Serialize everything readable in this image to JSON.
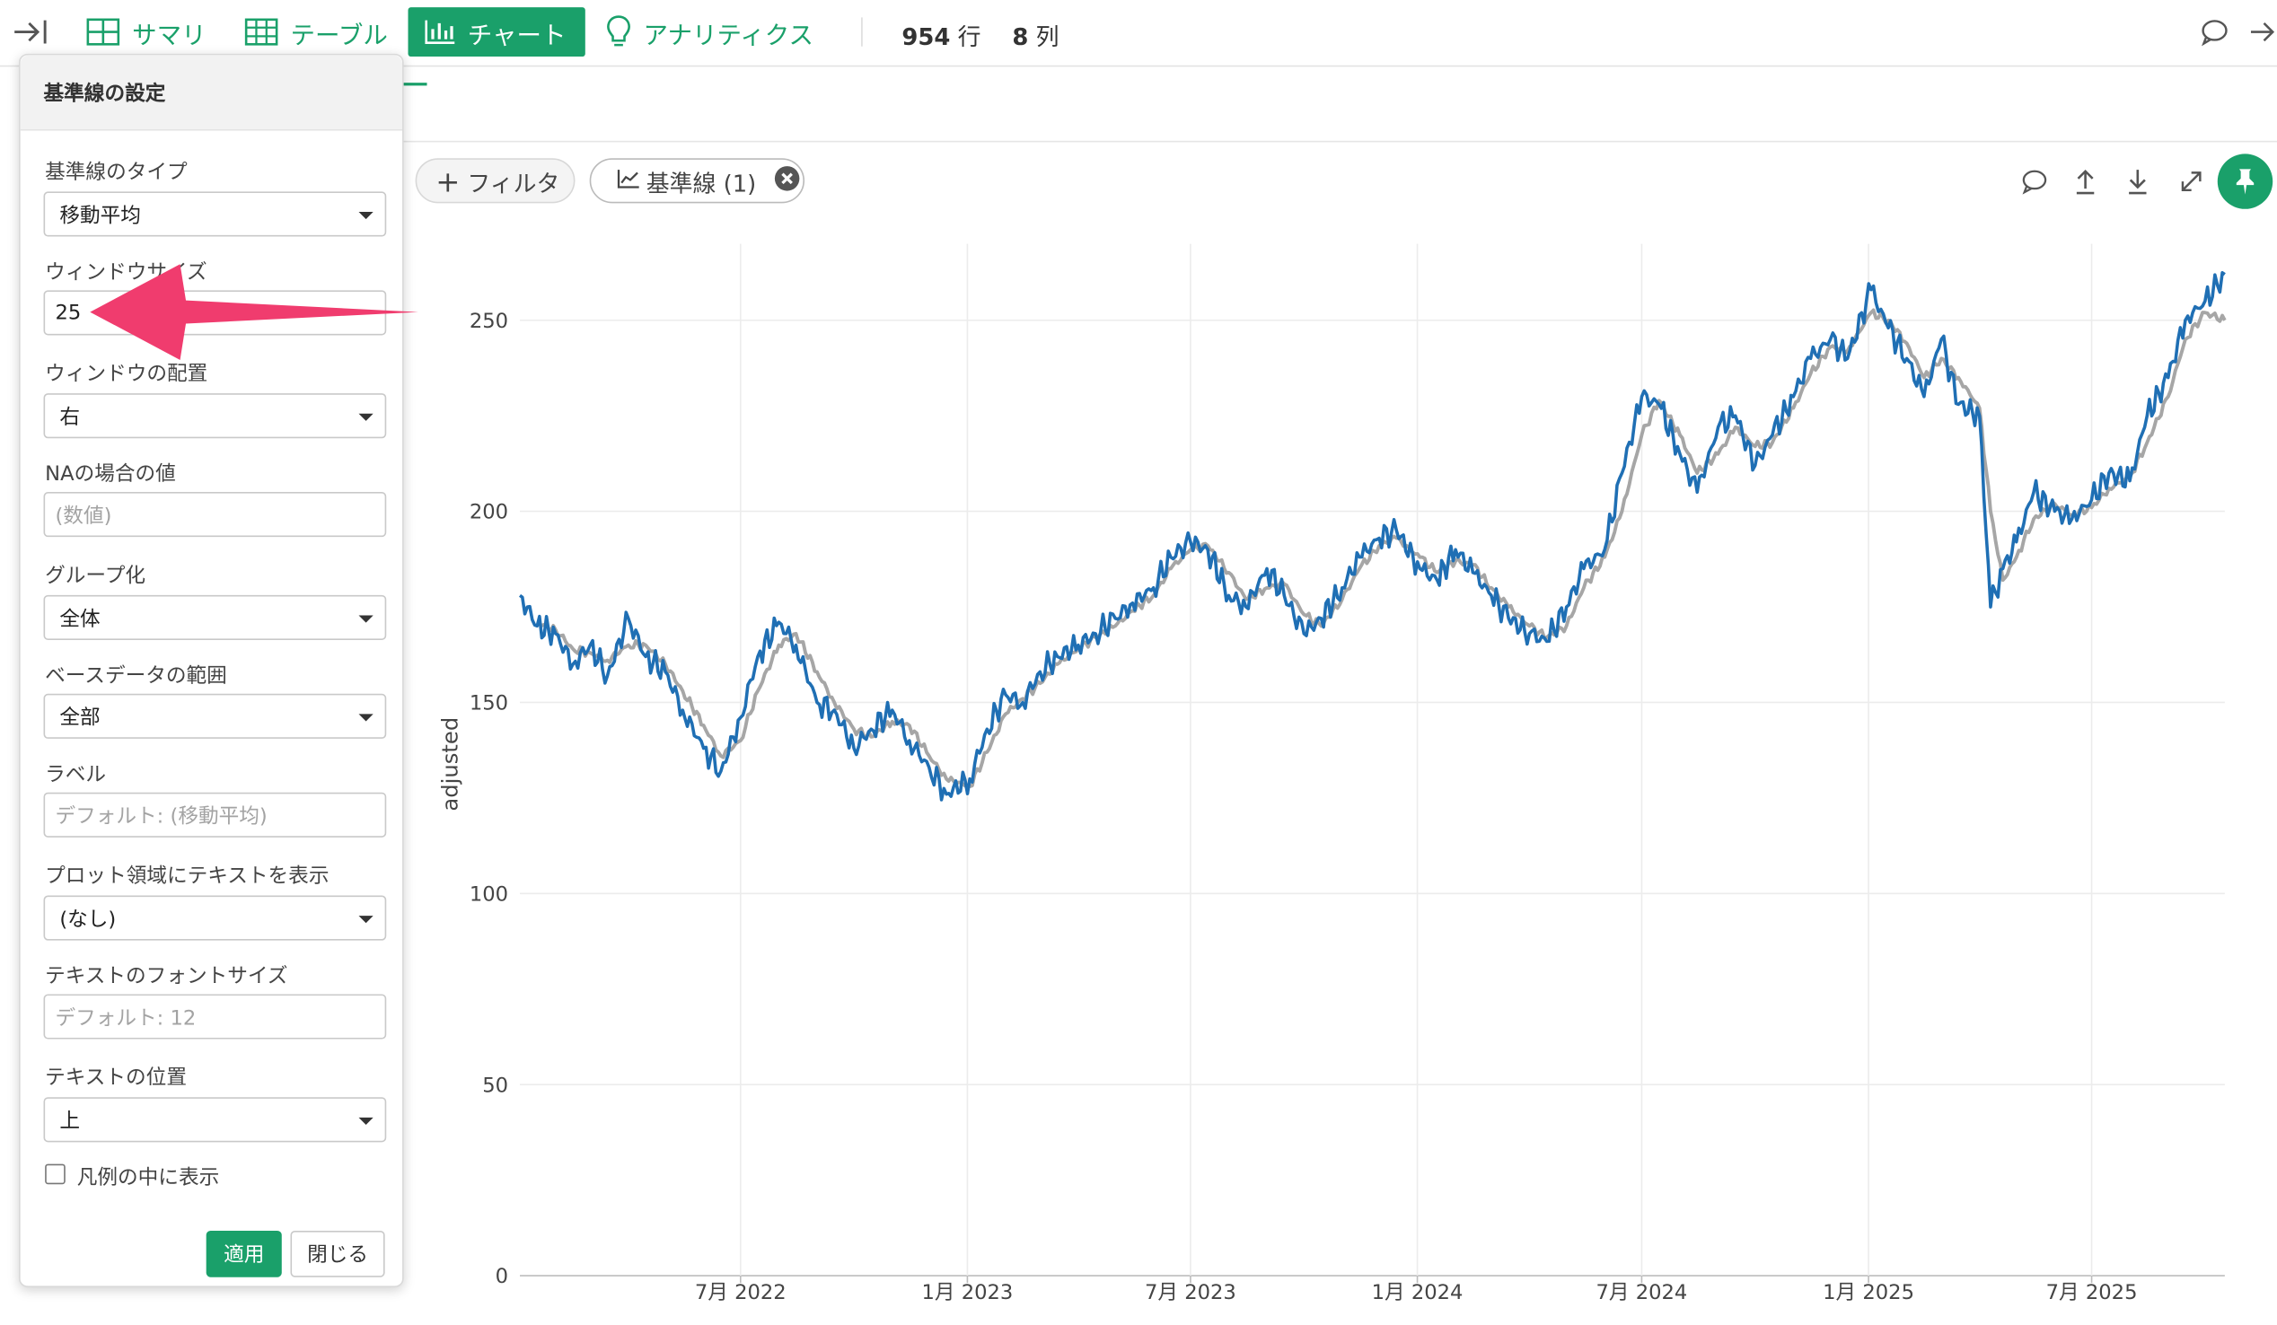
{
  "nav": {
    "collapse_icon": "collapse-right-icon",
    "tabs": [
      {
        "label": "サマリ",
        "icon": "summary-grid-icon"
      },
      {
        "label": "テーブル",
        "icon": "table-grid-icon"
      },
      {
        "label": "チャート",
        "icon": "bar-chart-icon"
      },
      {
        "label": "アナリティクス",
        "icon": "lightbulb-icon"
      }
    ],
    "active_tab": "チャート",
    "row_count": "954",
    "row_unit": "行",
    "col_count": "8",
    "col_unit": "列",
    "comment_icon": "comment-icon",
    "expand_icon": "arrow-right-icon"
  },
  "filters": {
    "add_filter_label": "フィルタ",
    "reference_pill_label": "基準線 (1)"
  },
  "chart_toolbar": {
    "icons": [
      "comment-icon",
      "upload-icon",
      "download-icon",
      "fullscreen-icon",
      "pin-icon"
    ]
  },
  "panel": {
    "title": "基準線の設定",
    "fields": {
      "type": {
        "label": "基準線のタイプ",
        "value": "移動平均"
      },
      "window_size": {
        "label": "ウィンドウサイズ",
        "value": "25"
      },
      "window_align": {
        "label": "ウィンドウの配置",
        "value": "右"
      },
      "na_value": {
        "label": "NAの場合の値",
        "placeholder": "(数値)"
      },
      "grouping": {
        "label": "グループ化",
        "value": "全体"
      },
      "base_range": {
        "label": "ベースデータの範囲",
        "value": "全部"
      },
      "label": {
        "label": "ラベル",
        "placeholder": "デフォルト: (移動平均)"
      },
      "plot_text": {
        "label": "プロット領域にテキストを表示",
        "value": "(なし)"
      },
      "font_size": {
        "label": "テキストのフォントサイズ",
        "placeholder": "デフォルト: 12"
      },
      "text_pos": {
        "label": "テキストの位置",
        "value": "上"
      }
    },
    "legend_checkbox_label": "凡例の中に表示",
    "legend_checked": false,
    "apply_label": "適用",
    "close_label": "閉じる"
  },
  "colors": {
    "brand": "#1aa06a",
    "series": "#1f6fb4",
    "reference": "#a6a6a6",
    "annotation_arrow": "#f03c6e"
  },
  "chart_data": {
    "type": "line",
    "ylabel": "adjusted",
    "ylim": [
      0,
      270
    ],
    "yticks": [
      0,
      50,
      100,
      150,
      200,
      250
    ],
    "xlim": [
      "2022-01-03",
      "2025-10-17"
    ],
    "xticks": [
      {
        "date": "2022-07-01",
        "label": "7月 2022"
      },
      {
        "date": "2023-01-01",
        "label": "1月 2023"
      },
      {
        "date": "2023-07-01",
        "label": "7月 2023"
      },
      {
        "date": "2024-01-01",
        "label": "1月 2024"
      },
      {
        "date": "2024-07-01",
        "label": "7月 2024"
      },
      {
        "date": "2025-01-01",
        "label": "1月 2025"
      },
      {
        "date": "2025-07-01",
        "label": "7月 2025"
      }
    ],
    "grid": true,
    "series": [
      {
        "x": [
          "2022-01-03",
          "2022-01-17",
          "2022-02-01",
          "2022-02-15",
          "2022-03-01",
          "2022-03-15",
          "2022-04-01",
          "2022-04-15",
          "2022-05-01",
          "2022-05-15",
          "2022-06-01",
          "2022-06-15",
          "2022-07-01",
          "2022-07-15",
          "2022-08-01",
          "2022-08-15",
          "2022-09-01",
          "2022-09-15",
          "2022-10-01",
          "2022-10-15",
          "2022-11-01",
          "2022-11-15",
          "2022-12-01",
          "2022-12-15",
          "2023-01-03",
          "2023-01-17",
          "2023-02-01",
          "2023-02-15",
          "2023-03-01",
          "2023-03-15",
          "2023-04-01",
          "2023-04-15",
          "2023-05-01",
          "2023-05-15",
          "2023-06-01",
          "2023-06-15",
          "2023-07-01",
          "2023-07-15",
          "2023-08-01",
          "2023-08-15",
          "2023-09-01",
          "2023-09-15",
          "2023-10-01",
          "2023-10-15",
          "2023-11-01",
          "2023-11-15",
          "2023-12-01",
          "2023-12-15",
          "2024-01-03",
          "2024-01-17",
          "2024-02-01",
          "2024-02-15",
          "2024-03-01",
          "2024-03-15",
          "2024-04-01",
          "2024-04-15",
          "2024-05-01",
          "2024-05-15",
          "2024-06-01",
          "2024-06-15",
          "2024-07-01",
          "2024-07-15",
          "2024-08-01",
          "2024-08-15",
          "2024-09-01",
          "2024-09-15",
          "2024-10-01",
          "2024-10-15",
          "2024-11-01",
          "2024-11-15",
          "2024-12-01",
          "2024-12-15",
          "2025-01-03",
          "2025-01-17",
          "2025-02-01",
          "2025-02-15",
          "2025-03-01",
          "2025-03-15",
          "2025-04-01",
          "2025-04-10",
          "2025-04-20",
          "2025-05-01",
          "2025-05-15",
          "2025-06-01",
          "2025-06-15",
          "2025-07-01",
          "2025-07-15",
          "2025-08-01",
          "2025-08-15",
          "2025-09-01",
          "2025-09-15",
          "2025-10-01",
          "2025-10-17"
        ],
        "values": [
          178,
          170,
          168,
          160,
          165,
          157,
          172,
          162,
          158,
          148,
          138,
          132,
          146,
          162,
          171,
          165,
          150,
          148,
          138,
          143,
          148,
          140,
          133,
          126,
          130,
          143,
          152,
          150,
          158,
          162,
          165,
          168,
          172,
          176,
          180,
          188,
          192,
          190,
          178,
          175,
          185,
          178,
          168,
          172,
          180,
          188,
          193,
          195,
          185,
          182,
          190,
          184,
          178,
          172,
          168,
          166,
          175,
          185,
          190,
          210,
          230,
          228,
          215,
          205,
          222,
          225,
          212,
          220,
          230,
          240,
          245,
          240,
          258,
          248,
          240,
          230,
          245,
          228,
          225,
          175,
          185,
          192,
          205,
          200,
          198,
          203,
          210,
          208,
          225,
          235,
          250,
          255,
          262
        ]
      },
      {
        "name": "移動平均",
        "x": [
          "2022-01-17",
          "2022-02-01",
          "2022-02-15",
          "2022-03-01",
          "2022-03-15",
          "2022-04-01",
          "2022-04-15",
          "2022-05-01",
          "2022-05-15",
          "2022-06-01",
          "2022-06-15",
          "2022-07-01",
          "2022-07-15",
          "2022-08-01",
          "2022-08-15",
          "2022-09-01",
          "2022-09-15",
          "2022-10-01",
          "2022-10-15",
          "2022-11-01",
          "2022-11-15",
          "2022-12-01",
          "2022-12-15",
          "2023-01-03",
          "2023-01-17",
          "2023-02-01",
          "2023-02-15",
          "2023-03-01",
          "2023-03-15",
          "2023-04-01",
          "2023-04-15",
          "2023-05-01",
          "2023-05-15",
          "2023-06-01",
          "2023-06-15",
          "2023-07-01",
          "2023-07-15",
          "2023-08-01",
          "2023-08-15",
          "2023-09-01",
          "2023-09-15",
          "2023-10-01",
          "2023-10-15",
          "2023-11-01",
          "2023-11-15",
          "2023-12-01",
          "2023-12-15",
          "2024-01-03",
          "2024-01-17",
          "2024-02-01",
          "2024-02-15",
          "2024-03-01",
          "2024-03-15",
          "2024-04-01",
          "2024-04-15",
          "2024-05-01",
          "2024-05-15",
          "2024-06-01",
          "2024-06-15",
          "2024-07-01",
          "2024-07-15",
          "2024-08-01",
          "2024-08-15",
          "2024-09-01",
          "2024-09-15",
          "2024-10-01",
          "2024-10-15",
          "2024-11-01",
          "2024-11-15",
          "2024-12-01",
          "2024-12-15",
          "2025-01-03",
          "2025-01-17",
          "2025-02-01",
          "2025-02-15",
          "2025-03-01",
          "2025-03-15",
          "2025-04-01",
          "2025-04-10",
          "2025-04-20",
          "2025-05-01",
          "2025-05-15",
          "2025-06-01",
          "2025-06-15",
          "2025-07-01",
          "2025-07-15",
          "2025-08-01",
          "2025-08-15",
          "2025-09-01",
          "2025-09-15",
          "2025-10-01",
          "2025-10-17"
        ],
        "values": [
          171,
          169,
          164,
          163,
          161,
          165,
          165,
          160,
          153,
          144,
          136,
          140,
          153,
          165,
          168,
          158,
          150,
          143,
          141,
          145,
          144,
          136,
          130,
          128,
          137,
          147,
          151,
          155,
          160,
          164,
          167,
          170,
          174,
          178,
          185,
          190,
          191,
          184,
          177,
          180,
          181,
          173,
          170,
          177,
          185,
          191,
          193,
          188,
          184,
          187,
          186,
          180,
          175,
          170,
          167,
          170,
          180,
          188,
          200,
          220,
          229,
          220,
          210,
          215,
          222,
          217,
          218,
          227,
          236,
          243,
          242,
          252,
          250,
          244,
          235,
          240,
          235,
          227,
          200,
          182,
          188,
          198,
          202,
          199,
          201,
          206,
          209,
          218,
          230,
          245,
          252,
          250
        ]
      }
    ]
  },
  "annotation": {
    "type": "arrow",
    "target": "window-size-input"
  }
}
